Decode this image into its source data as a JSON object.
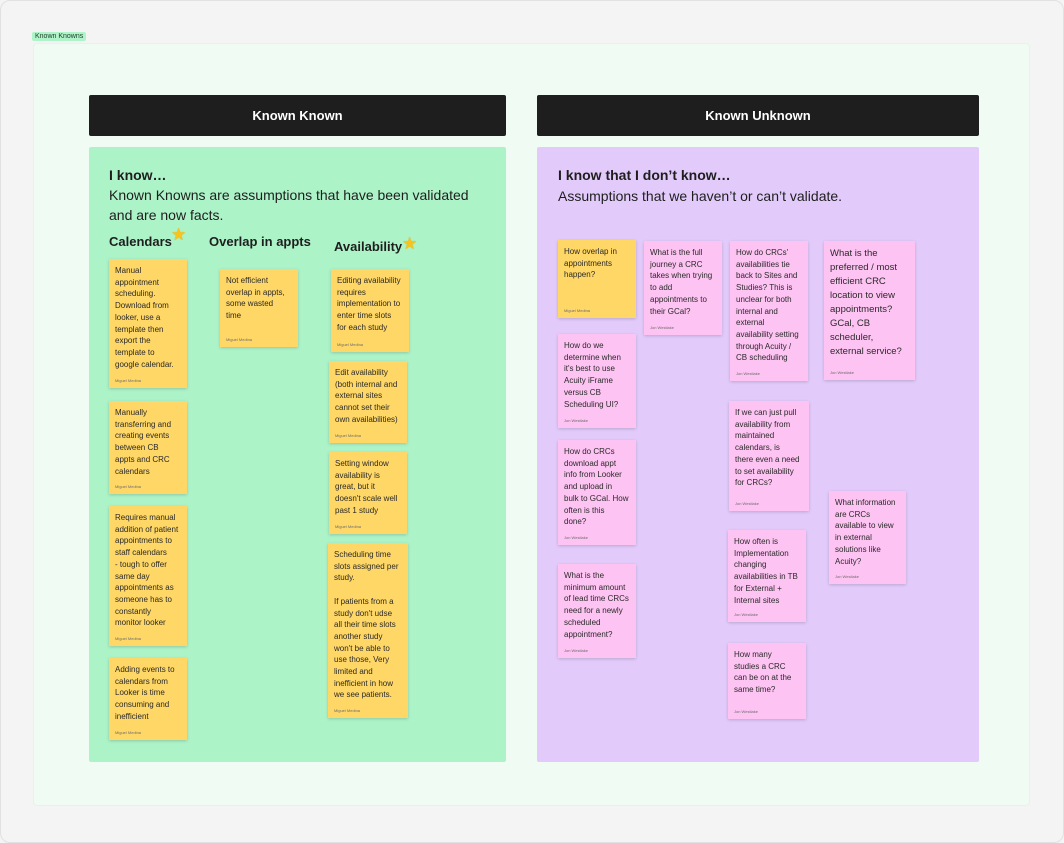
{
  "section_tag": "Known Knowns",
  "left": {
    "header": "Known Known",
    "heading": "I know…",
    "description": "Known Knowns are assumptions that have been validated\nand are now facts.",
    "columns": {
      "calendars": "Calendars",
      "overlap": "Overlap in appts",
      "availability": "Availability"
    },
    "stickies": [
      {
        "text": "Manual\nappointment\nscheduling.\nDownload from\nlooker, use a\ntemplate then\nexport the\ntemplate to\ngoogle calendar.",
        "author": "Miguel Medina"
      },
      {
        "text": "Manually\ntransferring and\ncreating events\nbetween CB\nappts and CRC\ncalendars",
        "author": "Miguel Medina"
      },
      {
        "text": "Requires manual\naddition of patient\nappointments to\nstaff calendars\n- tough to offer\nsame day\nappointments as\nsomeone has to\nconstantly\nmonitor looker",
        "author": "Miguel Medina"
      },
      {
        "text": "Adding events to\ncalendars from\nLooker is time\nconsuming and\ninefficient",
        "author": "Miguel Medina"
      },
      {
        "text": "Not efficient\noverlap in appts,\nsome wasted\ntime",
        "author": "Miguel Medina"
      },
      {
        "text": "Editing availability\nrequires\nimplementation to\nenter time slots\nfor each study",
        "author": "Miguel Medina"
      },
      {
        "text": "Edit availability\n(both internal and\nexternal sites\ncannot set their\nown availabilities)",
        "author": "Miguel Medina"
      },
      {
        "text": "Setting window\navailability is\ngreat, but it\ndoesn't scale well\npast 1 study",
        "author": "Miguel Medina"
      },
      {
        "text": "Scheduling time\nslots assigned per\nstudy.\n\nIf patients from a\nstudy don't udse\nall their time slots\nanother study\nwon't be able to\nuse those, Very\nlimited and\ninefficient in how\nwe see patients.",
        "author": "Miguel Medina"
      }
    ]
  },
  "right": {
    "header": "Known Unknown",
    "heading": "I know that I don’t know…",
    "description": "Assumptions that we haven’t or can’t validate.",
    "stickies": [
      {
        "text": "How overlap in\nappointments\nhappen?",
        "author": "Miguel Medina"
      },
      {
        "text": "How do we\ndetermine when\nit's best to use\nAcuity iFrame\nversus CB\nScheduling UI?",
        "author": "Jon Westlake"
      },
      {
        "text": "How do CRCs\ndownload appt\ninfo from Looker\nand upload in\nbulk to GCal. How\noften is this\ndone?",
        "author": "Jon Westlake"
      },
      {
        "text": "What is the\nminimum amount\nof lead time CRCs\nneed for a newly\nscheduled\nappointment?",
        "author": "Jon Westlake"
      },
      {
        "text": "What is the full\njourney a CRC\ntakes when trying\nto add\nappointments to\ntheir GCal?",
        "author": "Jon Westlake"
      },
      {
        "text": "How do CRCs'\navailabilities tie\nback to Sites and\nStudies? This is\nunclear for both\ninternal and\nexternal\navailability setting\nthrough Acuity /\nCB scheduling",
        "author": "Jon Westlake"
      },
      {
        "text": "If we can just pull\navailability from\nmaintained\ncalendars, is\nthere even a need\nto set availability\nfor CRCs?",
        "author": "Jon Westlake"
      },
      {
        "text": "How often is\nImplementation\nchanging\navailabilities in TB\nfor External +\nInternal sites",
        "author": "Jon Westlake"
      },
      {
        "text": "How many\nstudies a CRC\ncan be on at the\nsame time?",
        "author": "Jon Westlake"
      },
      {
        "text": "What is the\npreferred / most\nefficient CRC\nlocation to view\nappointments?\nGCal, CB\nscheduler,\nexternal service?",
        "author": "Jon Westlake"
      },
      {
        "text": "What information\nare CRCs\navailable to view\nin external\nsolutions like\nAcuity?",
        "author": "Jon Westlake"
      }
    ]
  },
  "icons": {
    "star": "star-icon"
  },
  "colors": {
    "header_bg": "#1e1e1e",
    "green_panel": "#adf3c8",
    "purple_panel": "#e2cbfb",
    "sticky_yellow": "#ffd766",
    "sticky_pink": "#fdc3f2"
  }
}
